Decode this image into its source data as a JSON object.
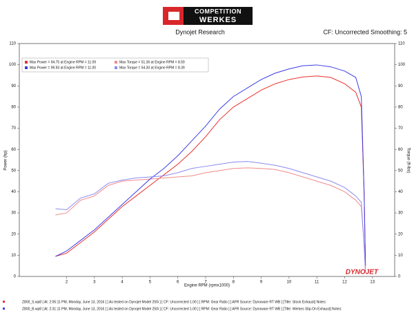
{
  "chart_data": {
    "type": "line",
    "logo": {
      "line1": "COMPETITION",
      "line2": "WERKES"
    },
    "title": "Dynojet Research",
    "subtitle": "CF: Uncorrected Smoothing: 5",
    "x_label": "Engine RPM (rpmx1000)",
    "y_label": "Power (hp)",
    "y2_label": "Torque (ft-lbs)",
    "brand": "DYNOJET",
    "xlim": [
      0.3,
      13.8
    ],
    "xticks": [
      2,
      3,
      4,
      5,
      6,
      7,
      8,
      9,
      10,
      11,
      12,
      13
    ],
    "ylim": [
      0,
      110
    ],
    "yticks": [
      0,
      10,
      20,
      30,
      40,
      50,
      60,
      70,
      80,
      90,
      100,
      110
    ],
    "y2lim": [
      0,
      110
    ],
    "y2ticks": [
      0,
      10,
      20,
      30,
      40,
      50,
      60,
      70,
      80,
      90,
      100,
      110
    ],
    "grid": false,
    "x": [
      1.6,
      2.0,
      2.5,
      3.0,
      3.5,
      4.0,
      4.5,
      5.0,
      5.5,
      6.0,
      6.5,
      7.0,
      7.5,
      8.0,
      8.5,
      9.0,
      9.5,
      10.0,
      10.5,
      11.0,
      11.5,
      12.0,
      12.4,
      12.6,
      12.7,
      12.75
    ],
    "series": [
      {
        "name": "Max Power = 94.75 at Engine RPM = 11.09",
        "color": "#e8302e",
        "values": [
          9.5,
          11,
          16,
          21,
          27,
          33,
          38,
          43,
          48,
          53,
          59,
          66,
          74,
          80,
          84,
          88,
          91,
          93,
          94.2,
          94.7,
          94,
          91,
          87,
          80,
          40,
          5
        ]
      },
      {
        "name": "Max Torque = 51.36 at Engine RPM = 8.59",
        "color": "#f08a8a",
        "axis": "y2",
        "values": [
          29,
          30,
          36,
          38,
          43,
          45,
          45.5,
          46,
          46.5,
          47,
          47.5,
          49,
          50,
          51,
          51.3,
          51,
          50.5,
          49,
          47,
          45,
          43,
          40,
          36,
          33,
          15,
          2
        ]
      },
      {
        "name": "Max Power = 99.93 at Engine RPM = 11.00",
        "color": "#3c3ce6",
        "values": [
          9.5,
          12,
          17,
          22,
          28,
          34,
          40,
          46,
          51,
          57,
          64,
          71,
          79,
          85,
          89,
          93,
          96,
          98,
          99.5,
          99.9,
          99,
          97,
          94,
          85,
          40,
          5
        ]
      },
      {
        "name": "Max Torque = 54.30 at Engine RPM = 8.39",
        "color": "#8a8af0",
        "axis": "y2",
        "values": [
          32,
          31.5,
          37,
          39,
          44,
          45.5,
          46.5,
          47,
          47.5,
          49,
          51,
          52,
          53,
          54,
          54.3,
          53.5,
          52.5,
          51,
          49,
          47,
          45,
          42,
          38,
          35,
          15,
          2
        ]
      }
    ],
    "footer": [
      {
        "text": "Z800_S.wp8  [ At: 2:05:11 PM, Monday, June 13, 2016 ]  [ As tested on Dynojet Model 250i ]  [ CF: Uncorrected 1.00 ]  [ RPM: Gear Ratio ]  [ AFR Source: Dynoware RT WB ]  [Title: Stock Exhaust]  Notes:",
        "color": "#e8302e"
      },
      {
        "text": "Z800_B.wp8  [ At: 2:31:11 PM, Monday, June 13, 2016 ]  [ As tested on Dynojet Model 250i ]  [ CF: Uncorrected 1.00 ]  [ RPM: Gear Ratio ]  [ AFR Source: Dynoware RT WB ]  [Title: Werkes Slip-On Exhaust]  Notes:",
        "color": "#3c3ce6"
      }
    ]
  }
}
